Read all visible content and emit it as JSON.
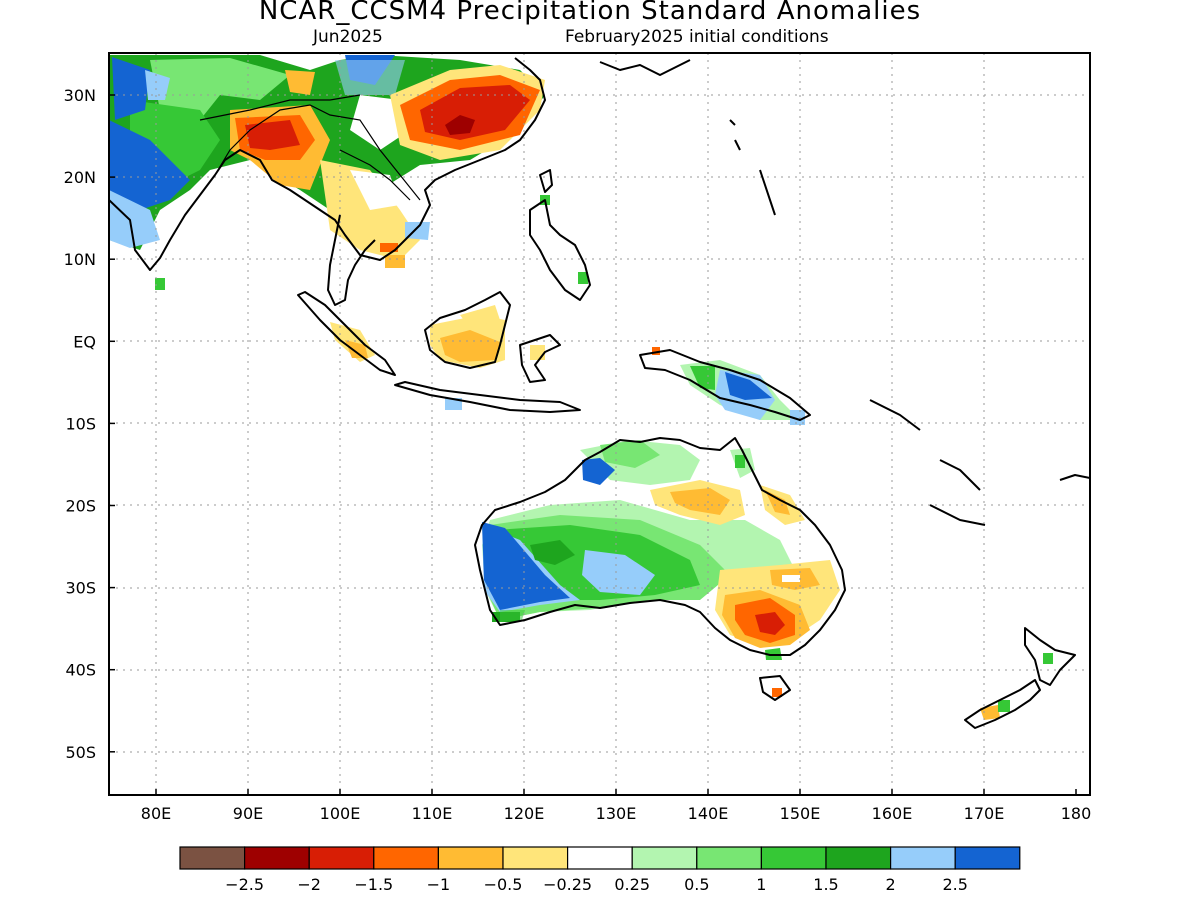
{
  "title": "NCAR_CCSM4 Precipitation Standard Anomalies",
  "subtitle_left": "Jun2025",
  "subtitle_right": "February2025 initial conditions",
  "y_axis_labels": [
    "30N",
    "20N",
    "10N",
    "EQ",
    "10S",
    "20S",
    "30S",
    "40S",
    "50S"
  ],
  "x_axis_labels": [
    "80E",
    "90E",
    "100E",
    "110E",
    "120E",
    "130E",
    "140E",
    "150E",
    "160E",
    "170E",
    "180"
  ],
  "colorbar": {
    "colors": [
      "#7b5242",
      "#9e0000",
      "#d81e05",
      "#ff6600",
      "#ffbb33",
      "#ffe57a",
      "#ffffff",
      "#b3f5b0",
      "#78e673",
      "#36c836",
      "#1ea51e",
      "#96cdfa",
      "#1464d2"
    ],
    "labels": [
      "−2.5",
      "−2",
      "−1.5",
      "−1",
      "−0.5",
      "−0.25",
      "0.25",
      "0.5",
      "1",
      "1.5",
      "2",
      "2.5"
    ]
  }
}
